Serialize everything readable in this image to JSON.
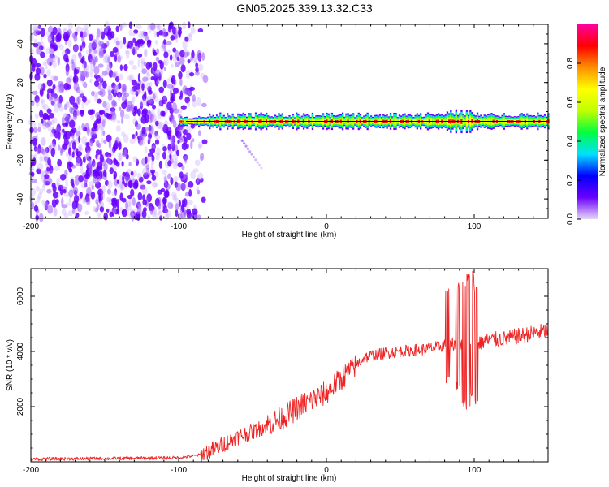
{
  "title": "GN05.2025.339.13.32.C33",
  "chart_data": [
    {
      "type": "heatmap",
      "title": "GN05.2025.339.13.32.C33",
      "xlabel": "Height of straight line (km)",
      "ylabel": "Frequency (Hz)",
      "xlim": [
        -200,
        150
      ],
      "ylim": [
        -50,
        50
      ],
      "x_ticks": [
        -200,
        -100,
        0,
        100
      ],
      "x_tick_labels": [
        "-200",
        "-100",
        "0",
        "100"
      ],
      "y_ticks": [
        -40,
        -20,
        0,
        20,
        40
      ],
      "y_tick_labels": [
        "-40",
        "-20",
        "0",
        "20",
        "40"
      ],
      "noise_region_x": [
        -200,
        -85
      ],
      "signal_band": {
        "x_start": -100,
        "x_end": 150,
        "center_hz": 0,
        "halfwidth_hz": 3
      },
      "doppler_tail": {
        "x": [
          -57,
          -44
        ],
        "hz": [
          -10,
          -24
        ]
      },
      "colorbar": {
        "label": "Normalized spectral amplitude",
        "range": [
          0,
          1
        ],
        "ticks": [
          0.0,
          0.2,
          0.4,
          0.6,
          0.8
        ],
        "tick_labels": [
          "0.0",
          "0.2",
          "0.4",
          "0.6",
          "0.8"
        ],
        "colors": [
          "#e8d8f8",
          "#6a00ff",
          "#0000ff",
          "#00e0ff",
          "#00ff40",
          "#c0ff00",
          "#ffff00",
          "#ff9000",
          "#ff0000",
          "#ff00a0"
        ]
      }
    },
    {
      "type": "line",
      "xlabel": "Height of straight line (km)",
      "ylabel": "SNR (10 * v/v)",
      "xlim": [
        -200,
        150
      ],
      "ylim": [
        0,
        7000
      ],
      "x_ticks": [
        -200,
        -100,
        0,
        100
      ],
      "x_tick_labels": [
        "-200",
        "-100",
        "0",
        "100"
      ],
      "y_ticks": [
        2000,
        4000,
        6000
      ],
      "y_tick_labels": [
        "2000",
        "4000",
        "6000"
      ],
      "color": "#ee2222",
      "series_envelope": {
        "x": [
          -200,
          -150,
          -100,
          -85,
          -75,
          -60,
          -45,
          -30,
          -15,
          0,
          10,
          20,
          25,
          30,
          40,
          50,
          60,
          70,
          78,
          80,
          85,
          90,
          95,
          100,
          105,
          110,
          120,
          130,
          140,
          150
        ],
        "y": [
          100,
          120,
          150,
          250,
          500,
          900,
          1200,
          1600,
          2100,
          2500,
          3000,
          3500,
          3750,
          3850,
          3950,
          4000,
          4050,
          4100,
          4200,
          4250,
          4300,
          4350,
          4300,
          4250,
          4350,
          4400,
          4450,
          4550,
          4650,
          4750
        ]
      },
      "bursts": [
        {
          "x": 82,
          "min": 2800,
          "max": 6300
        },
        {
          "x": 89,
          "min": 2600,
          "max": 6500
        },
        {
          "x": 93,
          "min": 2000,
          "max": 6600
        },
        {
          "x": 96,
          "min": 1800,
          "max": 6800
        },
        {
          "x": 99,
          "min": 2200,
          "max": 7000
        },
        {
          "x": 101,
          "min": 2000,
          "max": 6400
        }
      ]
    }
  ]
}
